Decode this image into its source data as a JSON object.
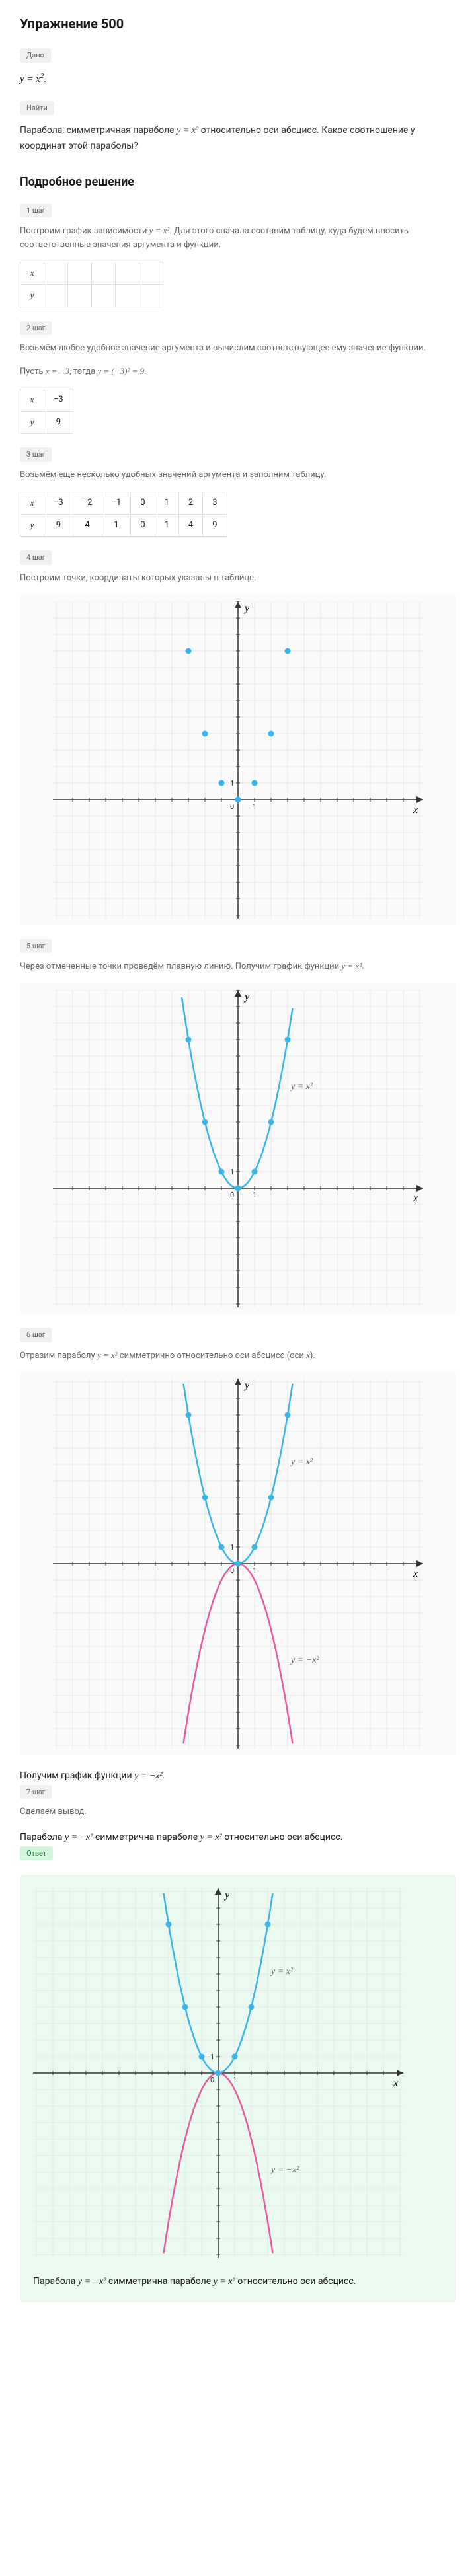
{
  "title": "Упражнение 500",
  "badges": {
    "given": "Дано",
    "find": "Найти",
    "answer": "Ответ"
  },
  "given_prefix": "y = x",
  "given_exp": "2",
  "given_suffix": ".",
  "task_p1": "Парабола, симметричная параболе ",
  "task_eq": "y = x²",
  "task_p2": " относительно оси абсцисс. Какое соотношение у координат этой параболы?",
  "solution_heading": "Подробное решение",
  "steps": {
    "s1": {
      "label": "1 шаг",
      "text_a": "Построим график зависимости ",
      "eq": "y = x²",
      "text_b": ". Для этого сначала составим таблицу, куда будем вносить соответственные значения аргумента и функции."
    },
    "s2": {
      "label": "2 шаг",
      "text": "Возьмём любое удобное значение аргумента и вычислим соответствующее ему значение функции.",
      "calc_a": "Пусть ",
      "calc_b": "x = −3",
      "calc_c": ", тогда ",
      "calc_d": "y = (−3)² = 9",
      "calc_e": "."
    },
    "s3": {
      "label": "3 шаг",
      "text": "Возьмём еще несколько удобных значений аргумента и заполним таблицу."
    },
    "s4": {
      "label": "4 шаг",
      "text": "Построим точки, координаты которых указаны в таблице."
    },
    "s5": {
      "label": "5 шаг",
      "text_a": "Через отмеченные точки проведём плавную линию. Получим график функции ",
      "eq": "y = x²",
      "text_b": "."
    },
    "s6": {
      "label": "6 шаг",
      "text_a": "Отразим параболу ",
      "eq": "y = x²",
      "text_b": " симметрично относительно оси абсцисс (оси ",
      "var": "x",
      "text_c": ")."
    },
    "s6_result_a": "Получим график функции ",
    "s6_result_eq": "y = −x²",
    "s6_result_b": ".",
    "s7": {
      "label": "7 шаг",
      "text": "Сделаем вывод."
    },
    "s7_concl_a": "Парабола ",
    "s7_concl_eq1": "y = −x²",
    "s7_concl_b": " симметрична параболе ",
    "s7_concl_eq2": "y = x²",
    "s7_concl_c": " относительно оси абсцисс."
  },
  "table1": {
    "r1": [
      "x",
      "",
      "",
      "",
      "",
      ""
    ],
    "r2": [
      "y",
      "",
      "",
      "",
      "",
      ""
    ]
  },
  "table2": {
    "r1": [
      "x",
      "−3"
    ],
    "r2": [
      "y",
      "9"
    ]
  },
  "table3": {
    "r1": [
      "x",
      "−3",
      "−2",
      "−1",
      "0",
      "1",
      "2",
      "3"
    ],
    "r2": [
      "y",
      "9",
      "4",
      "1",
      "0",
      "1",
      "4",
      "9"
    ]
  },
  "answer_a": "Парабола ",
  "answer_eq1": "y = −x²",
  "answer_b": " симметрична параболе ",
  "answer_eq2": "y = x²",
  "answer_c": " относительно оси абсцисс.",
  "chart": {
    "grid_color": "#e8e8e8",
    "axis_color": "#333",
    "point_color": "#3bb5e8",
    "curve_blue": "#3bb5e8",
    "curve_pink": "#e85a9e",
    "bg": "#fafafa",
    "points": [
      [
        -3,
        9
      ],
      [
        -2,
        4
      ],
      [
        -1,
        1
      ],
      [
        0,
        0
      ],
      [
        1,
        1
      ],
      [
        2,
        4
      ],
      [
        3,
        9
      ]
    ],
    "xrange": [
      -10,
      10
    ],
    "yrange_single": [
      -8,
      12
    ],
    "yrange_double": [
      -11,
      11
    ],
    "eq_up": "y = x²",
    "eq_down": "y = −x²"
  }
}
